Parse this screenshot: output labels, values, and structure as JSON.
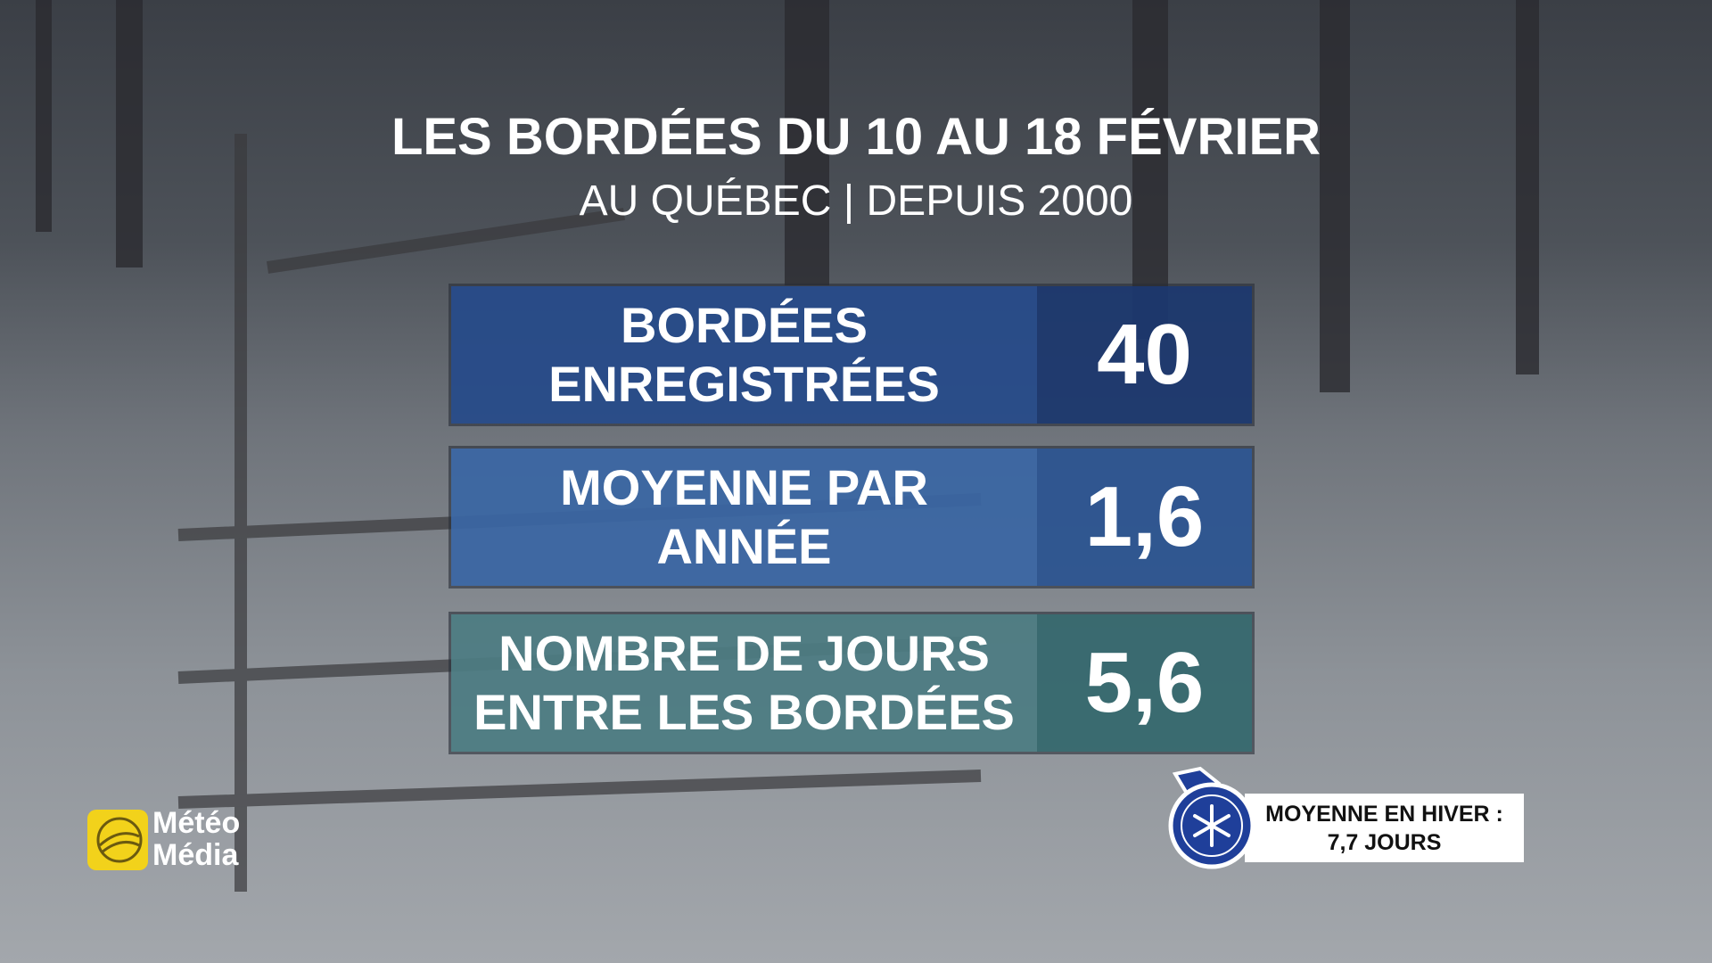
{
  "header": {
    "title": "LES BORDÉES DU 10 AU 18 FÉVRIER",
    "subtitle": "AU QUÉBEC | DEPUIS 2000"
  },
  "rows": [
    {
      "label_lines": [
        "BORDÉES",
        "ENREGISTRÉES"
      ],
      "value": "40"
    },
    {
      "label_lines": [
        "MOYENNE PAR",
        "ANNÉE"
      ],
      "value": "1,6"
    },
    {
      "label_lines": [
        "NOMBRE DE JOURS",
        "ENTRE LES BORDÉES"
      ],
      "value": "5,6"
    }
  ],
  "logo": {
    "lines": [
      "Météo",
      "Média"
    ]
  },
  "badge": {
    "lines": [
      "MOYENNE EN HIVER :",
      "7,7 JOURS"
    ]
  }
}
